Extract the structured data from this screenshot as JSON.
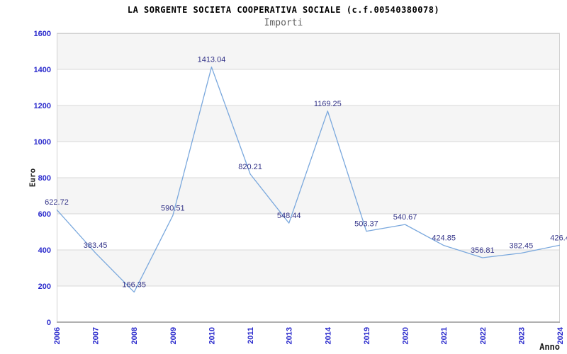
{
  "chart_data": {
    "type": "line",
    "title": "LA SORGENTE SOCIETA COOPERATIVA SOCIALE (c.f.00540380078)",
    "subtitle": "Importi",
    "xlabel": "Anno",
    "ylabel": "Euro",
    "categories": [
      "2006",
      "2007",
      "2008",
      "2009",
      "2010",
      "2011",
      "2013",
      "2014",
      "2019",
      "2020",
      "2021",
      "2022",
      "2023",
      "2024"
    ],
    "series": [
      {
        "name": "Importi",
        "values": [
          622.72,
          383.45,
          166.35,
          590.51,
          1413.04,
          820.21,
          548.44,
          1169.25,
          503.37,
          540.67,
          424.85,
          356.81,
          382.45,
          426.4
        ]
      }
    ],
    "point_labels": [
      "622.72",
      "383.45",
      "166.35",
      "590.51",
      "1413.04",
      "820.21",
      "548.44",
      "1169.25",
      "503.37",
      "540.67",
      "424.85",
      "356.81",
      "382.45",
      "426.4"
    ],
    "ylim": [
      0,
      1600
    ],
    "yticks": [
      0,
      200,
      400,
      600,
      800,
      1000,
      1200,
      1400,
      1600
    ],
    "grid": true,
    "legend": false,
    "colors": {
      "line": "#7aa8dd",
      "tick_label": "#2929cc",
      "data_label": "#333388",
      "band_even": "#ffffff",
      "band_odd": "#f5f5f5",
      "gridline": "#d8d8d8",
      "plot_border": "#d0d0d0",
      "x_axis_line": "#b0b0b0",
      "background": "#ffffff"
    }
  }
}
